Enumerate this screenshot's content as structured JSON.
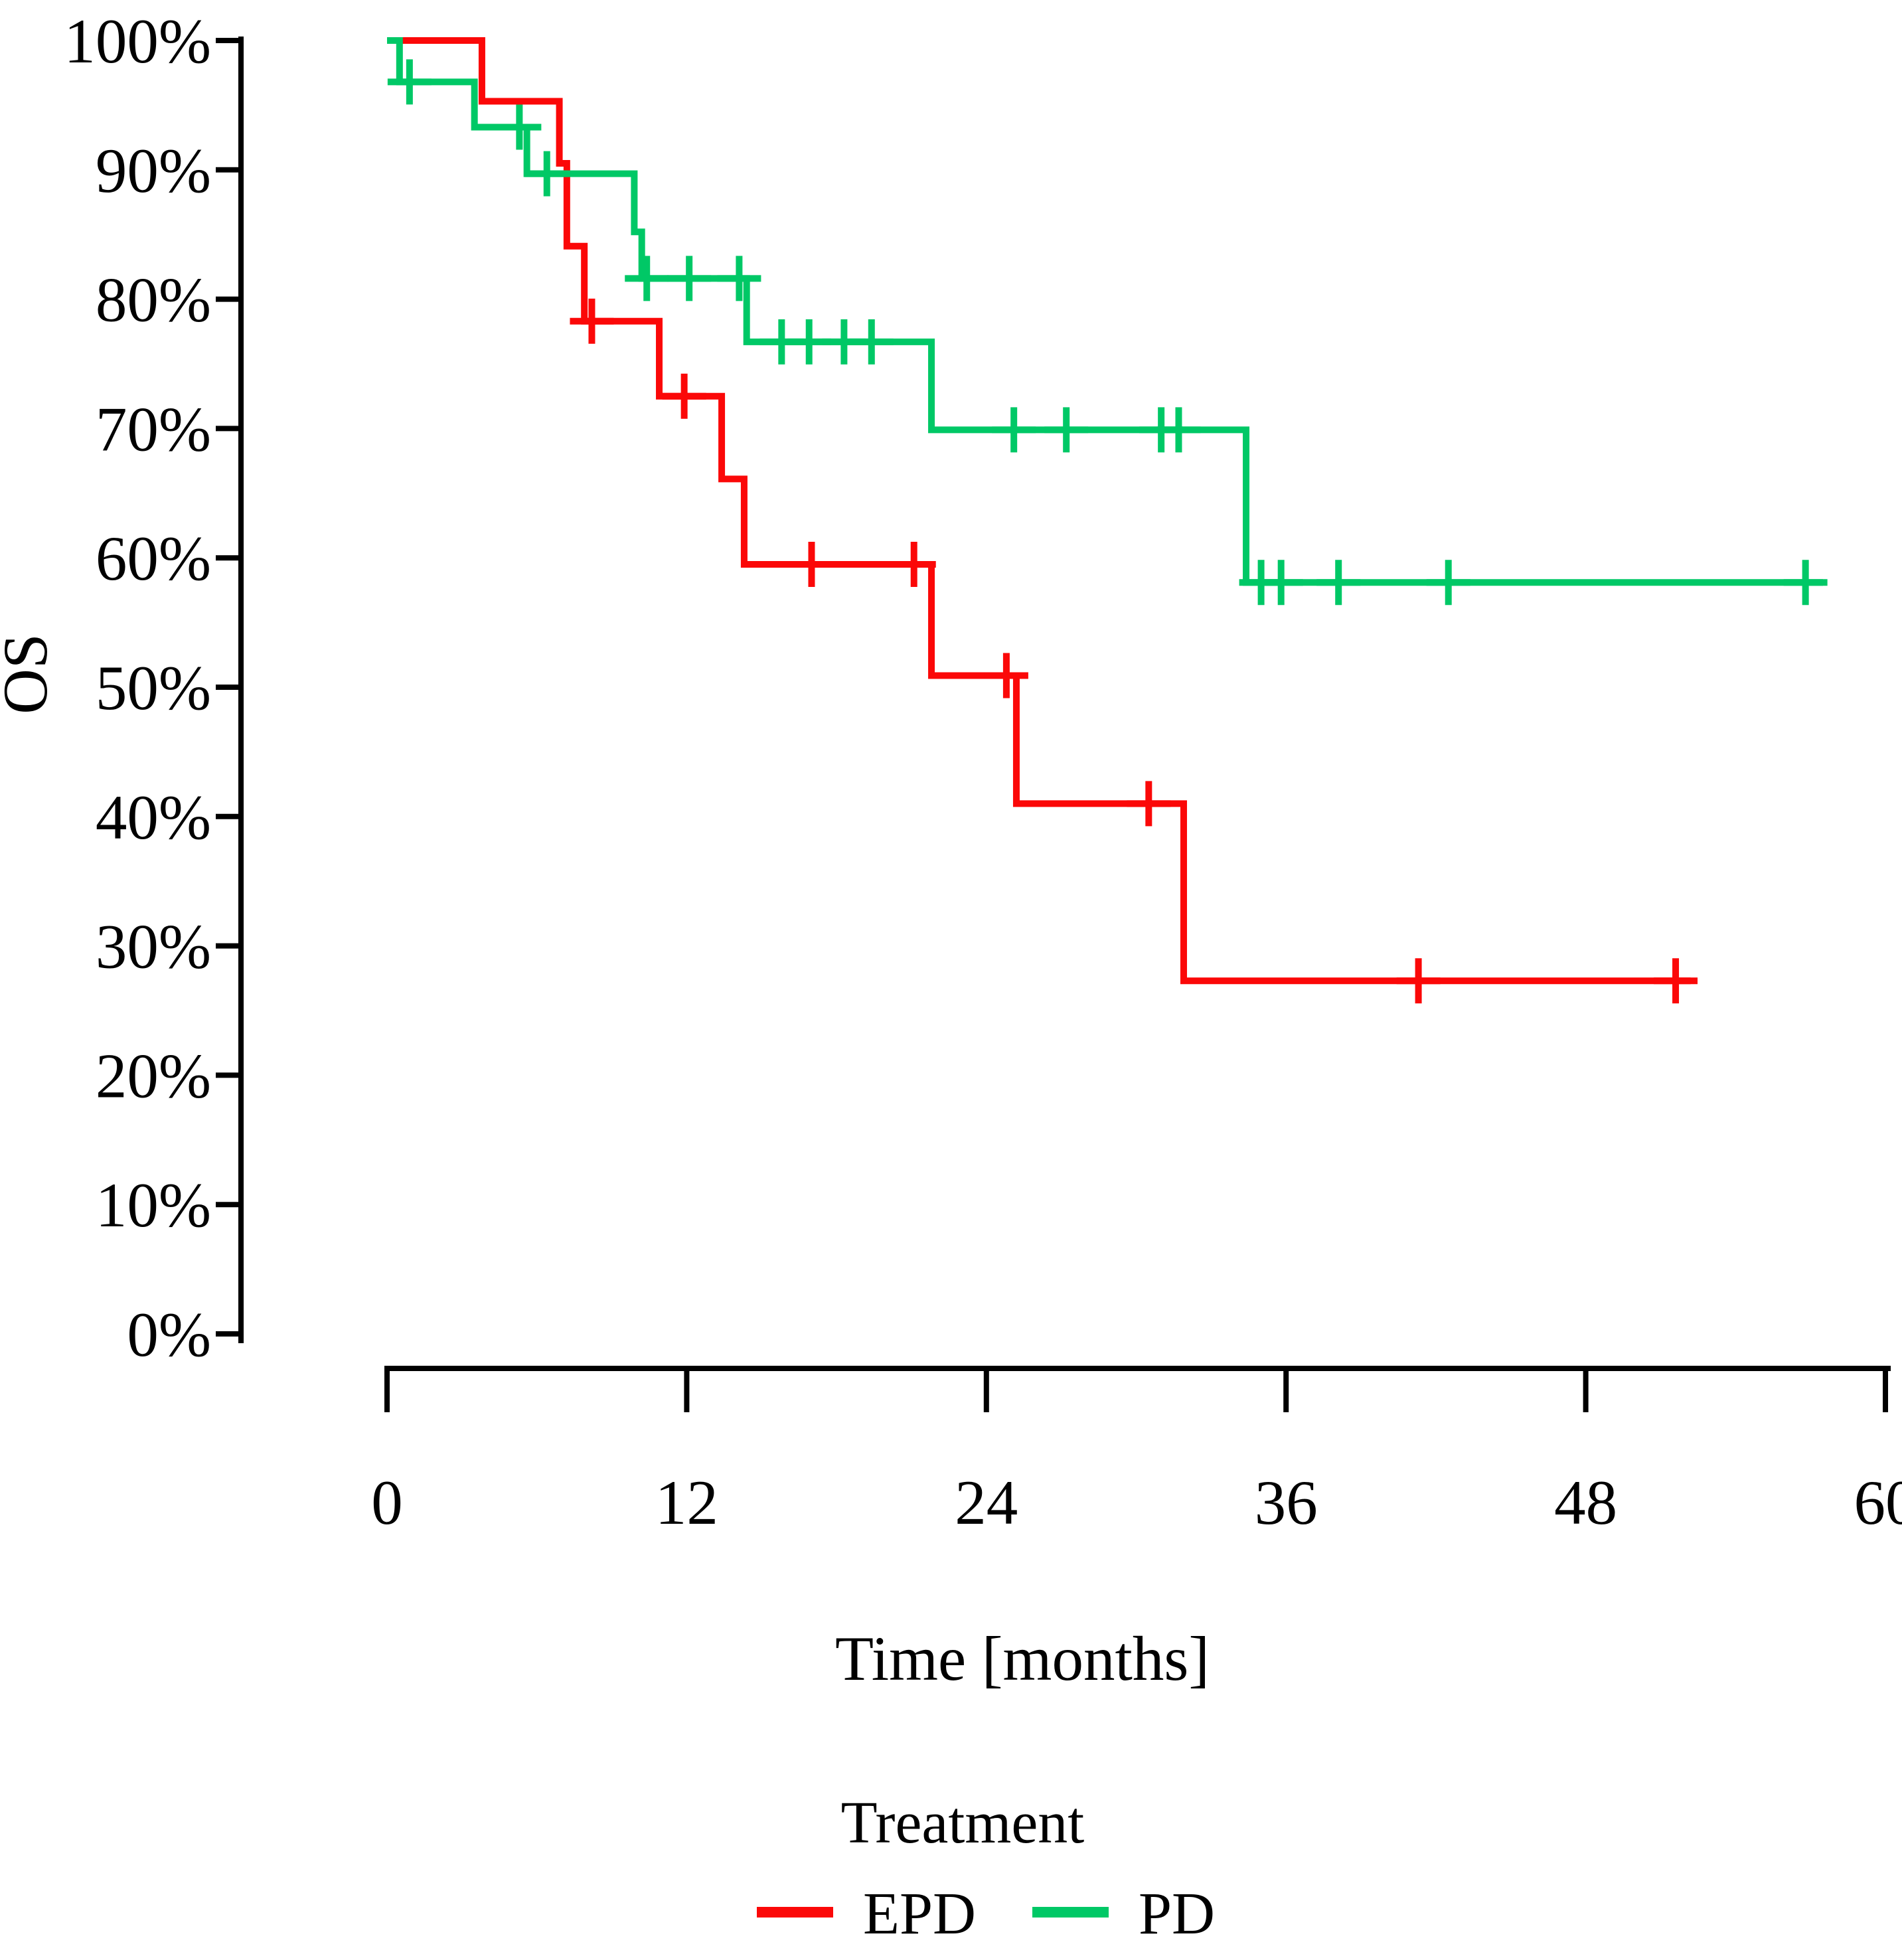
{
  "figure": {
    "y_axis": {
      "label": "OS",
      "tick_labels": [
        "100%",
        "90%",
        "80%",
        "70%",
        "60%",
        "50%",
        "40%",
        "30%",
        "20%",
        "10%",
        "0%"
      ],
      "tick_values": [
        100,
        90,
        80,
        70,
        60,
        50,
        40,
        30,
        20,
        10,
        0
      ]
    },
    "x_axis": {
      "label": "Time [months]",
      "tick_labels": [
        "0",
        "12",
        "24",
        "36",
        "48",
        "60"
      ],
      "tick_values": [
        0,
        12,
        24,
        36,
        48,
        60
      ]
    },
    "axis_color": "#000000"
  },
  "legend": {
    "title": "Treatment",
    "items": [
      {
        "label": "EPD",
        "color": "#fb0808"
      },
      {
        "label": "PD",
        "color": "#00c866"
      }
    ]
  },
  "chart_data": {
    "type": "line",
    "subtype": "kaplan-meier-step-curves",
    "title": "",
    "xlabel": "Time [months]",
    "ylabel": "OS",
    "xlim": [
      0,
      60
    ],
    "ylim": [
      0,
      100
    ],
    "x_ticks": [
      0,
      12,
      24,
      36,
      48,
      60
    ],
    "y_ticks": [
      0,
      10,
      20,
      30,
      40,
      50,
      60,
      70,
      80,
      90,
      100
    ],
    "grid": false,
    "legend_position": "bottom",
    "legend_title": "Treatment",
    "series": [
      {
        "name": "EPD",
        "color": "#fb0808",
        "end_time": 52.2,
        "steps": [
          [
            0,
            100
          ],
          [
            3.8,
            95.3
          ],
          [
            6.9,
            90.5
          ],
          [
            7.2,
            84.1
          ],
          [
            7.9,
            78.3
          ],
          [
            10.9,
            72.5
          ],
          [
            13.4,
            66.1
          ],
          [
            14.3,
            59.5
          ],
          [
            21.8,
            50.9
          ],
          [
            25.2,
            41.0
          ],
          [
            31.9,
            27.3
          ]
        ],
        "censor_marks": [
          [
            8.2,
            78.3
          ],
          [
            11.9,
            72.5
          ],
          [
            17.0,
            59.5
          ],
          [
            21.1,
            59.5
          ],
          [
            24.8,
            50.9
          ],
          [
            30.5,
            41.0
          ],
          [
            41.3,
            27.3
          ],
          [
            51.6,
            27.3
          ]
        ]
      },
      {
        "name": "PD",
        "color": "#00c866",
        "end_time": 57.5,
        "steps": [
          [
            0,
            100
          ],
          [
            0.5,
            96.8
          ],
          [
            3.5,
            93.3
          ],
          [
            5.6,
            89.7
          ],
          [
            9.9,
            85.2
          ],
          [
            10.2,
            81.6
          ],
          [
            14.4,
            76.7
          ],
          [
            21.8,
            69.9
          ],
          [
            34.4,
            58.1
          ]
        ],
        "censor_marks": [
          [
            0.9,
            96.8
          ],
          [
            5.3,
            93.3
          ],
          [
            6.4,
            89.7
          ],
          [
            10.4,
            81.6
          ],
          [
            12.1,
            81.6
          ],
          [
            14.1,
            81.6
          ],
          [
            15.8,
            76.7
          ],
          [
            16.9,
            76.7
          ],
          [
            18.3,
            76.7
          ],
          [
            19.4,
            76.7
          ],
          [
            25.1,
            69.9
          ],
          [
            27.2,
            69.9
          ],
          [
            31.0,
            69.9
          ],
          [
            31.7,
            69.9
          ],
          [
            35.0,
            58.1
          ],
          [
            35.8,
            58.1
          ],
          [
            38.1,
            58.1
          ],
          [
            42.5,
            58.1
          ],
          [
            56.8,
            58.1
          ]
        ]
      }
    ]
  }
}
